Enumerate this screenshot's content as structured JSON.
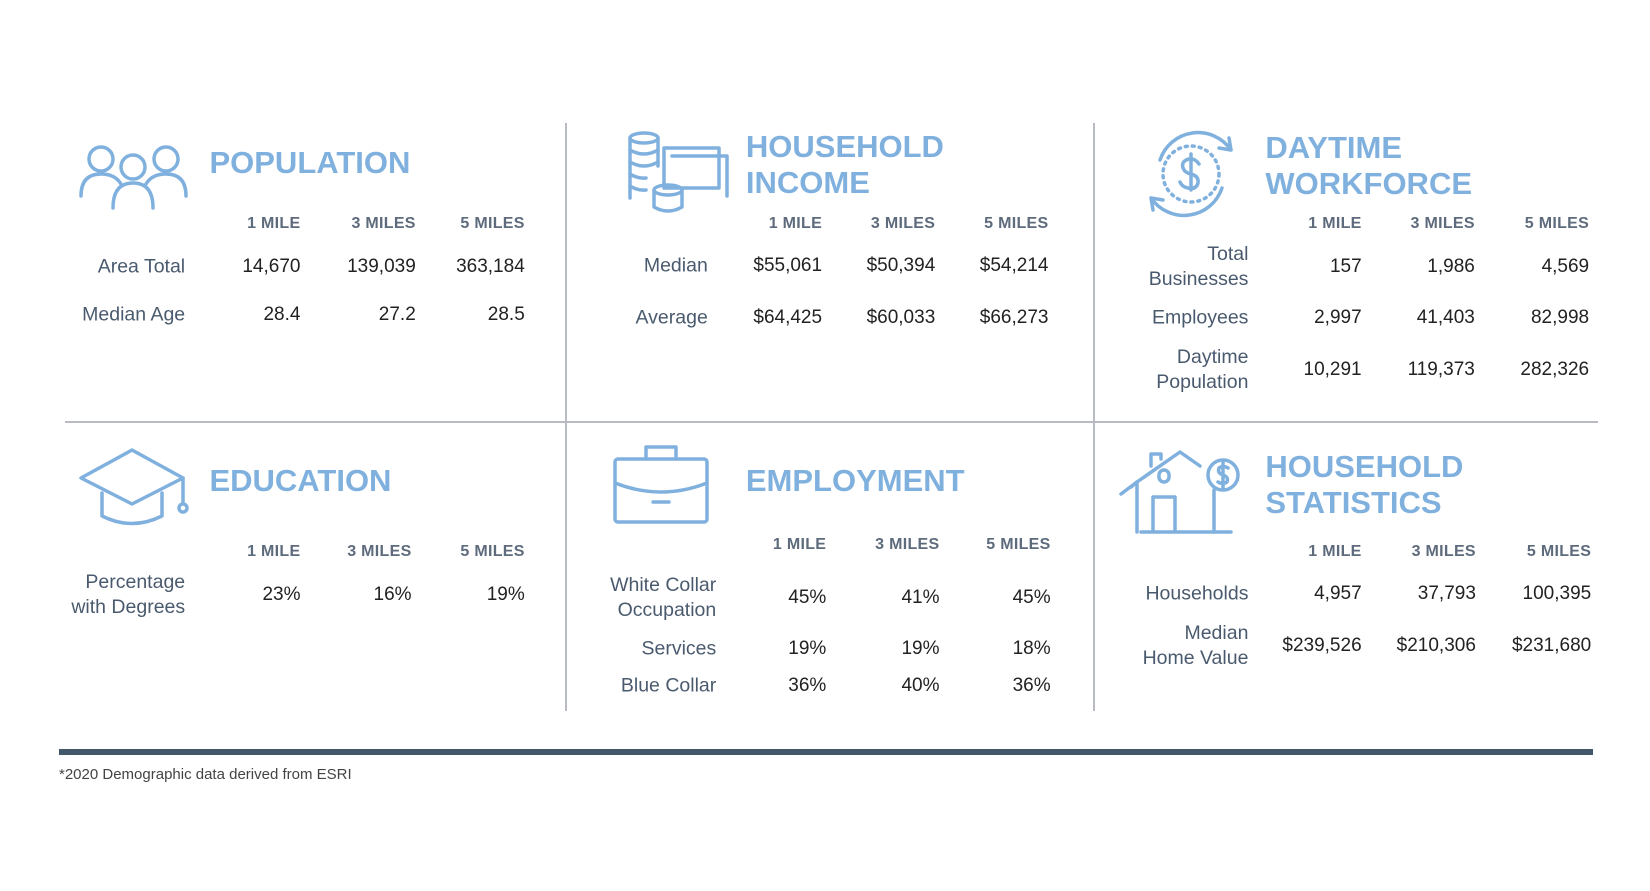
{
  "sections": [
    {
      "title": "POPULATION",
      "columns": [
        "1 MILE",
        "3 MILES",
        "5 MILES"
      ],
      "rows": [
        {
          "label": "Area Total",
          "values": [
            "14,670",
            "139,039",
            "363,184"
          ]
        },
        {
          "label": "Median Age",
          "values": [
            "28.4",
            "27.2",
            "28.5"
          ]
        }
      ]
    },
    {
      "title": "HOUSEHOLD INCOME",
      "columns": [
        "1 MILE",
        "3 MILES",
        "5 MILES"
      ],
      "rows": [
        {
          "label": "Median",
          "values": [
            "$55,061",
            "$50,394",
            "$54,214"
          ]
        },
        {
          "label": "Average",
          "values": [
            "$64,425",
            "$60,033",
            "$66,273"
          ]
        }
      ]
    },
    {
      "title": "DAYTIME WORKFORCE",
      "columns": [
        "1 MILE",
        "3 MILES",
        "5 MILES"
      ],
      "rows": [
        {
          "label": "Total Businesses",
          "values": [
            "157",
            "1,986",
            "4,569"
          ]
        },
        {
          "label": "Employees",
          "values": [
            "2,997",
            "41,403",
            "82,998"
          ]
        },
        {
          "label": "Daytime Population",
          "values": [
            "10,291",
            "119,373",
            "282,326"
          ]
        }
      ]
    },
    {
      "title": "EDUCATION",
      "columns": [
        "1 MILE",
        "3 MILES",
        "5 MILES"
      ],
      "rows": [
        {
          "label": "Percentage with Degrees",
          "values": [
            "23%",
            "16%",
            "19%"
          ]
        }
      ]
    },
    {
      "title": "EMPLOYMENT",
      "columns": [
        "1 MILE",
        "3 MILES",
        "5 MILES"
      ],
      "rows": [
        {
          "label": "White Collar Occupation",
          "values": [
            "45%",
            "41%",
            "45%"
          ]
        },
        {
          "label": "Services",
          "values": [
            "19%",
            "19%",
            "18%"
          ]
        },
        {
          "label": "Blue Collar",
          "values": [
            "36%",
            "40%",
            "36%"
          ]
        }
      ]
    },
    {
      "title": "HOUSEHOLD STATISTICS",
      "columns": [
        "1 MILE",
        "3 MILES",
        "5 MILES"
      ],
      "rows": [
        {
          "label": "Households",
          "values": [
            "4,957",
            "37,793",
            "100,395"
          ]
        },
        {
          "label": "Median Home Value",
          "values": [
            "$239,526",
            "$210,306",
            "$231,680"
          ]
        }
      ]
    }
  ],
  "footnote": "*2020 Demographic data derived from ESRI"
}
